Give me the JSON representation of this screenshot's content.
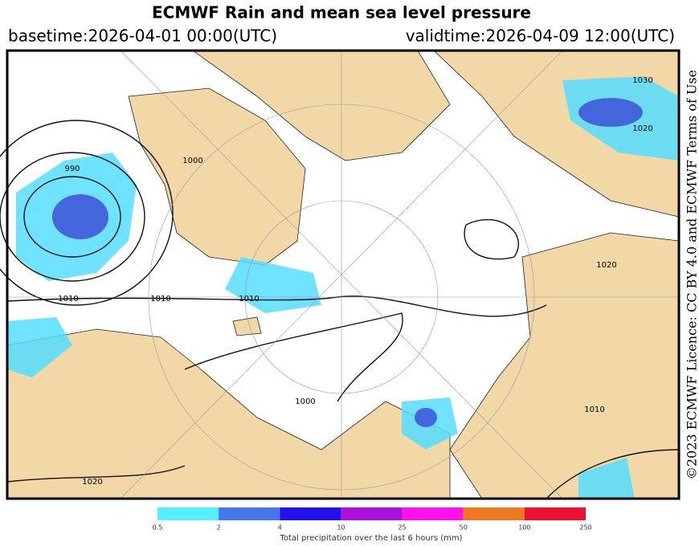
{
  "title": "ECMWF Rain and mean sea level pressure",
  "basetime": "basetime:2026-04-01 00:00(UTC)",
  "validtime": "validtime:2026-04-09 12:00(UTC)",
  "license": "©2023 ECMWF Licence: CC BY 4.0 and ECMWF Terms of Use",
  "colorbar": {
    "label": "Total precipitation over the last 6 hours (mm)",
    "ticks": [
      0.5,
      2,
      4,
      10,
      25,
      50,
      100,
      250
    ],
    "colors": [
      "#55eeff",
      "#4477ee",
      "#2211ee",
      "#aa11dd",
      "#ff11ee",
      "#ee7722",
      "#ee1133"
    ]
  },
  "contour_labels": [
    "1030",
    "1020",
    "990",
    "1000",
    "1010",
    "1010",
    "1010",
    "1020",
    "1000",
    "1010",
    "1020"
  ]
}
